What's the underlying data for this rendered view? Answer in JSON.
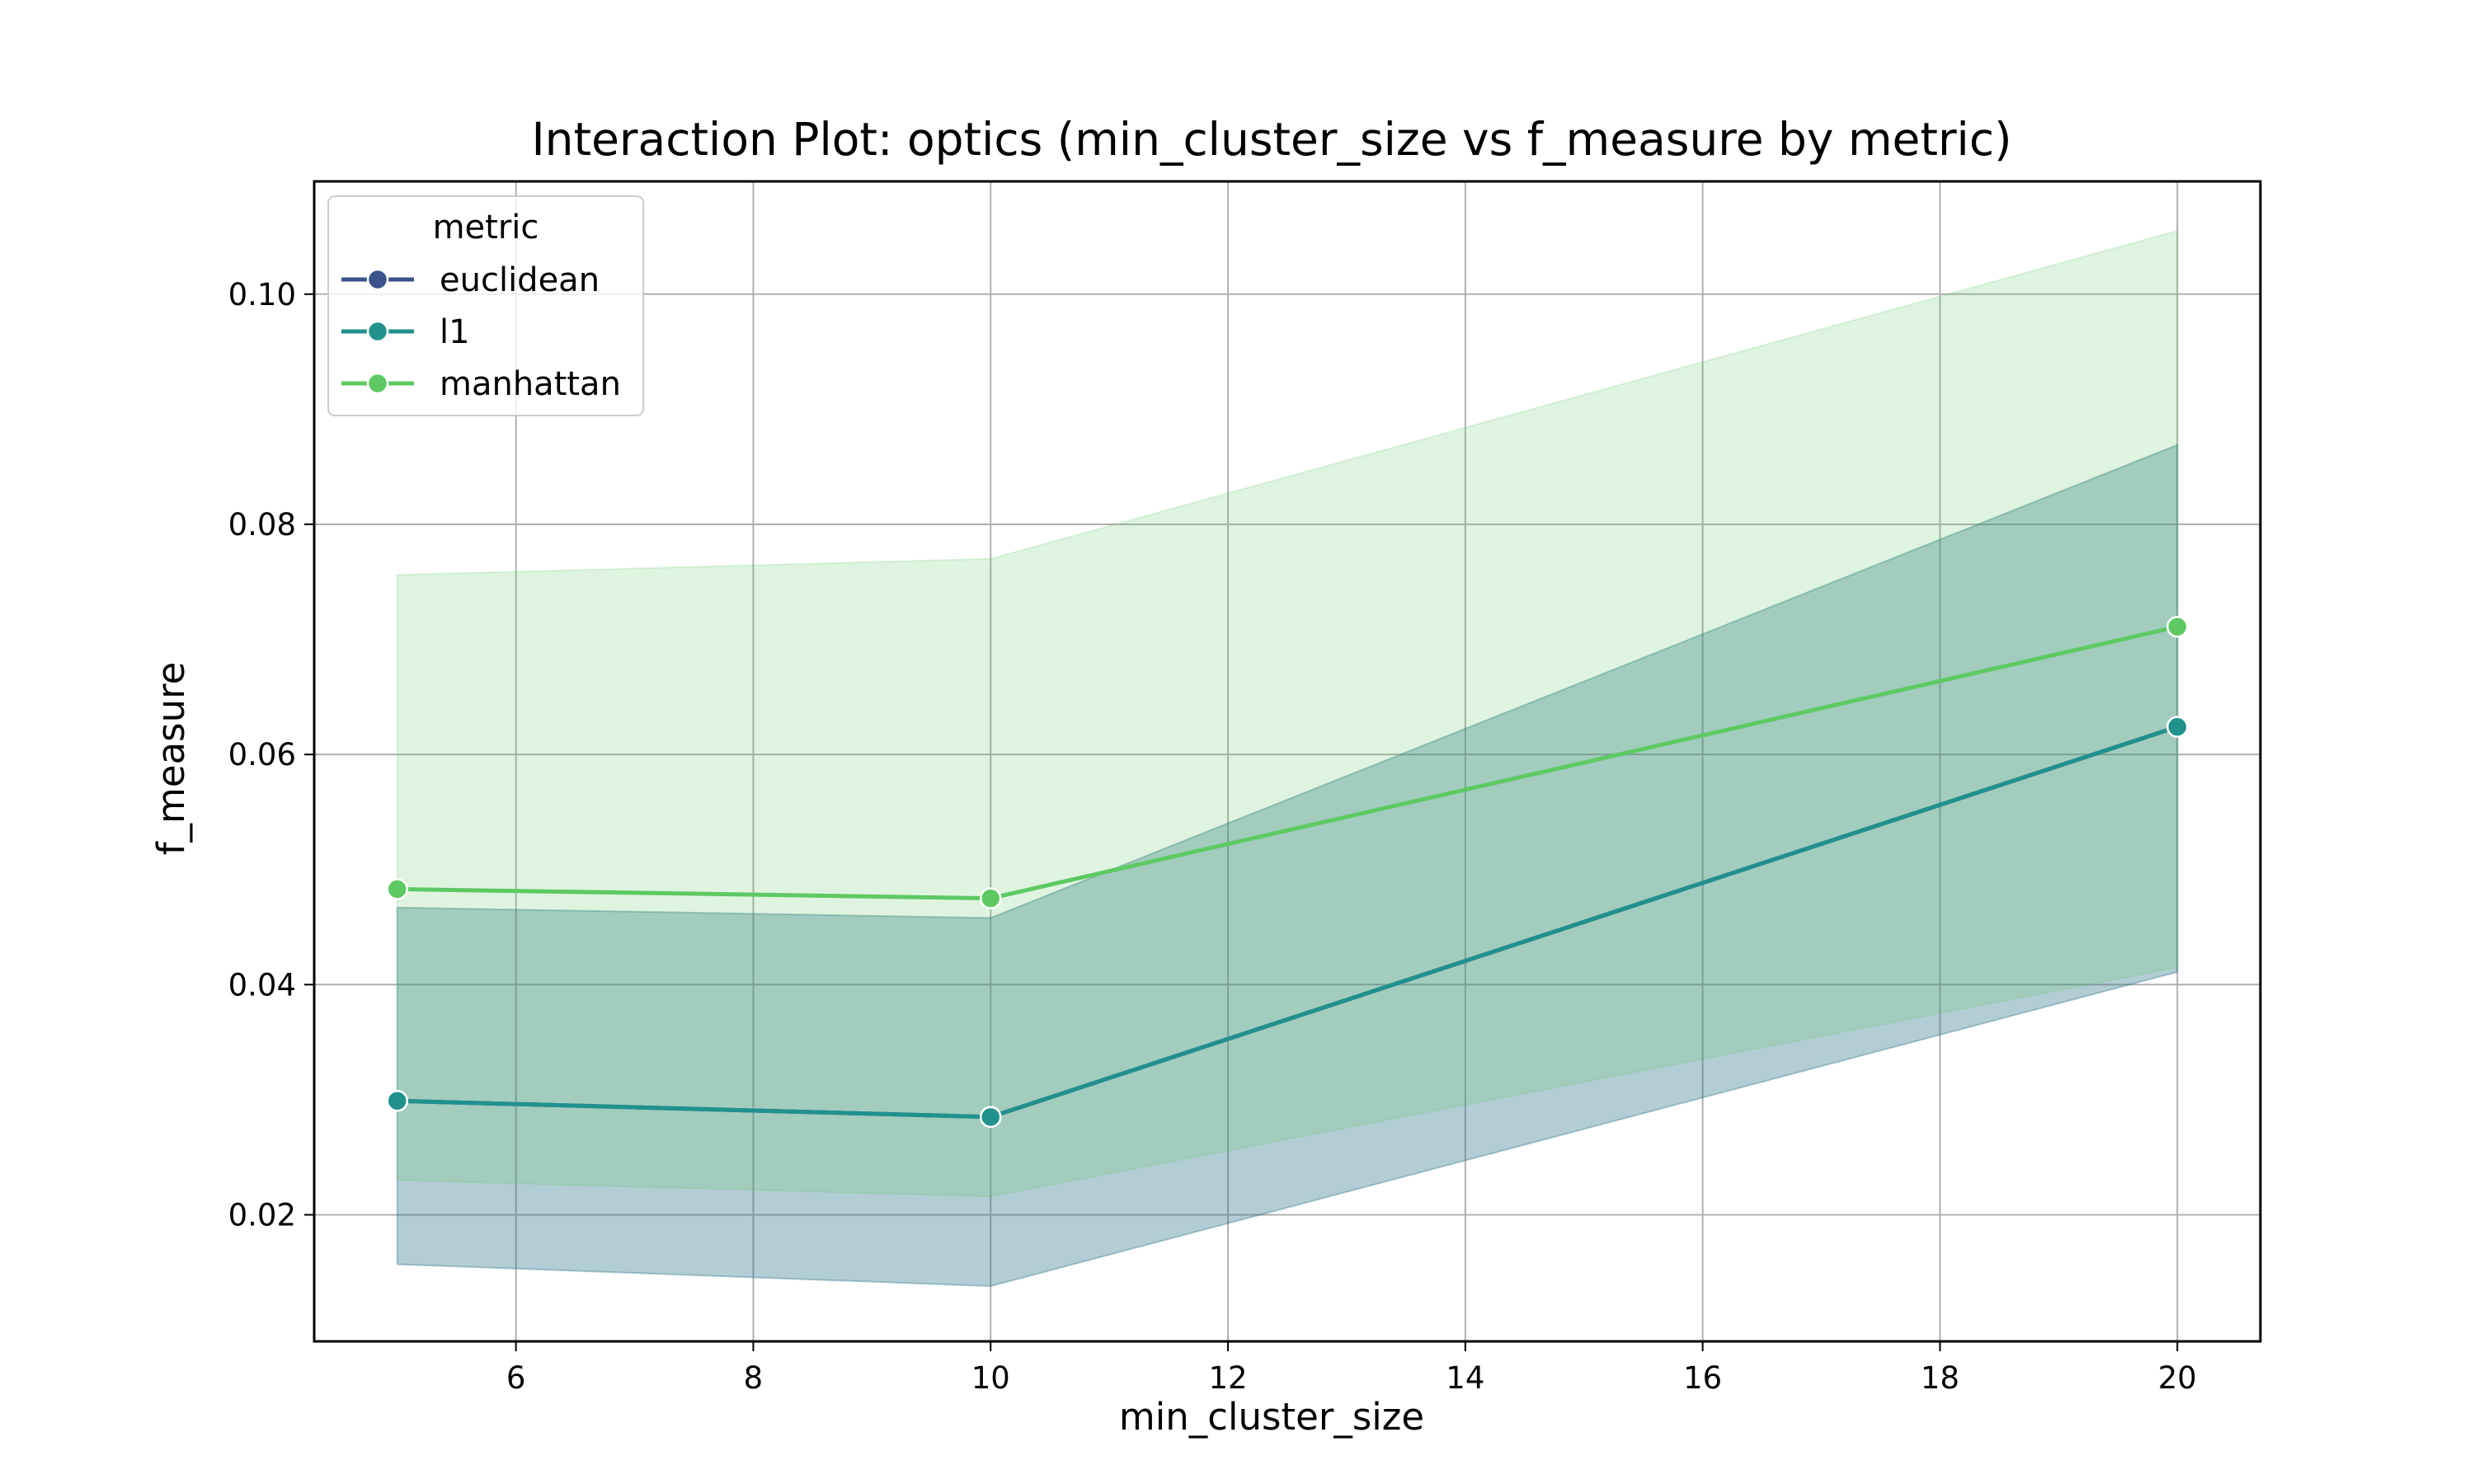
{
  "chart_data": {
    "type": "line",
    "title": "Interaction Plot: optics (min_cluster_size vs f_measure by metric)",
    "xlabel": "min_cluster_size",
    "ylabel": "f_measure",
    "xlim": [
      4.3,
      20.7
    ],
    "ylim": [
      0.009,
      0.1098
    ],
    "xticks": [
      6,
      8,
      10,
      12,
      14,
      16,
      18,
      20
    ],
    "yticks": [
      0.02,
      0.04,
      0.06,
      0.08,
      0.1
    ],
    "xtick_labels": [
      "6",
      "8",
      "10",
      "12",
      "14",
      "16",
      "18",
      "20"
    ],
    "ytick_labels": [
      "0.02",
      "0.04",
      "0.06",
      "0.08",
      "0.10"
    ],
    "grid": true,
    "legend_title": "metric",
    "legend_position": "top-left",
    "x": [
      5,
      10,
      20
    ],
    "series": [
      {
        "name": "euclidean",
        "color": "#3b528b",
        "values": [
          0.0299,
          0.0285,
          0.0624
        ],
        "ci_lower": [
          0.0157,
          0.0138,
          0.0411
        ],
        "ci_upper": [
          0.0467,
          0.0458,
          0.0869
        ]
      },
      {
        "name": "l1",
        "color": "#21918c",
        "values": [
          0.0299,
          0.0285,
          0.0624
        ],
        "ci_lower": [
          0.0157,
          0.0138,
          0.0411
        ],
        "ci_upper": [
          0.0467,
          0.0458,
          0.0869
        ]
      },
      {
        "name": "manhattan",
        "color": "#5ec962",
        "values": [
          0.0483,
          0.0475,
          0.0711
        ],
        "ci_lower": [
          0.023,
          0.0216,
          0.0415
        ],
        "ci_upper": [
          0.0756,
          0.077,
          0.1055
        ]
      }
    ]
  }
}
